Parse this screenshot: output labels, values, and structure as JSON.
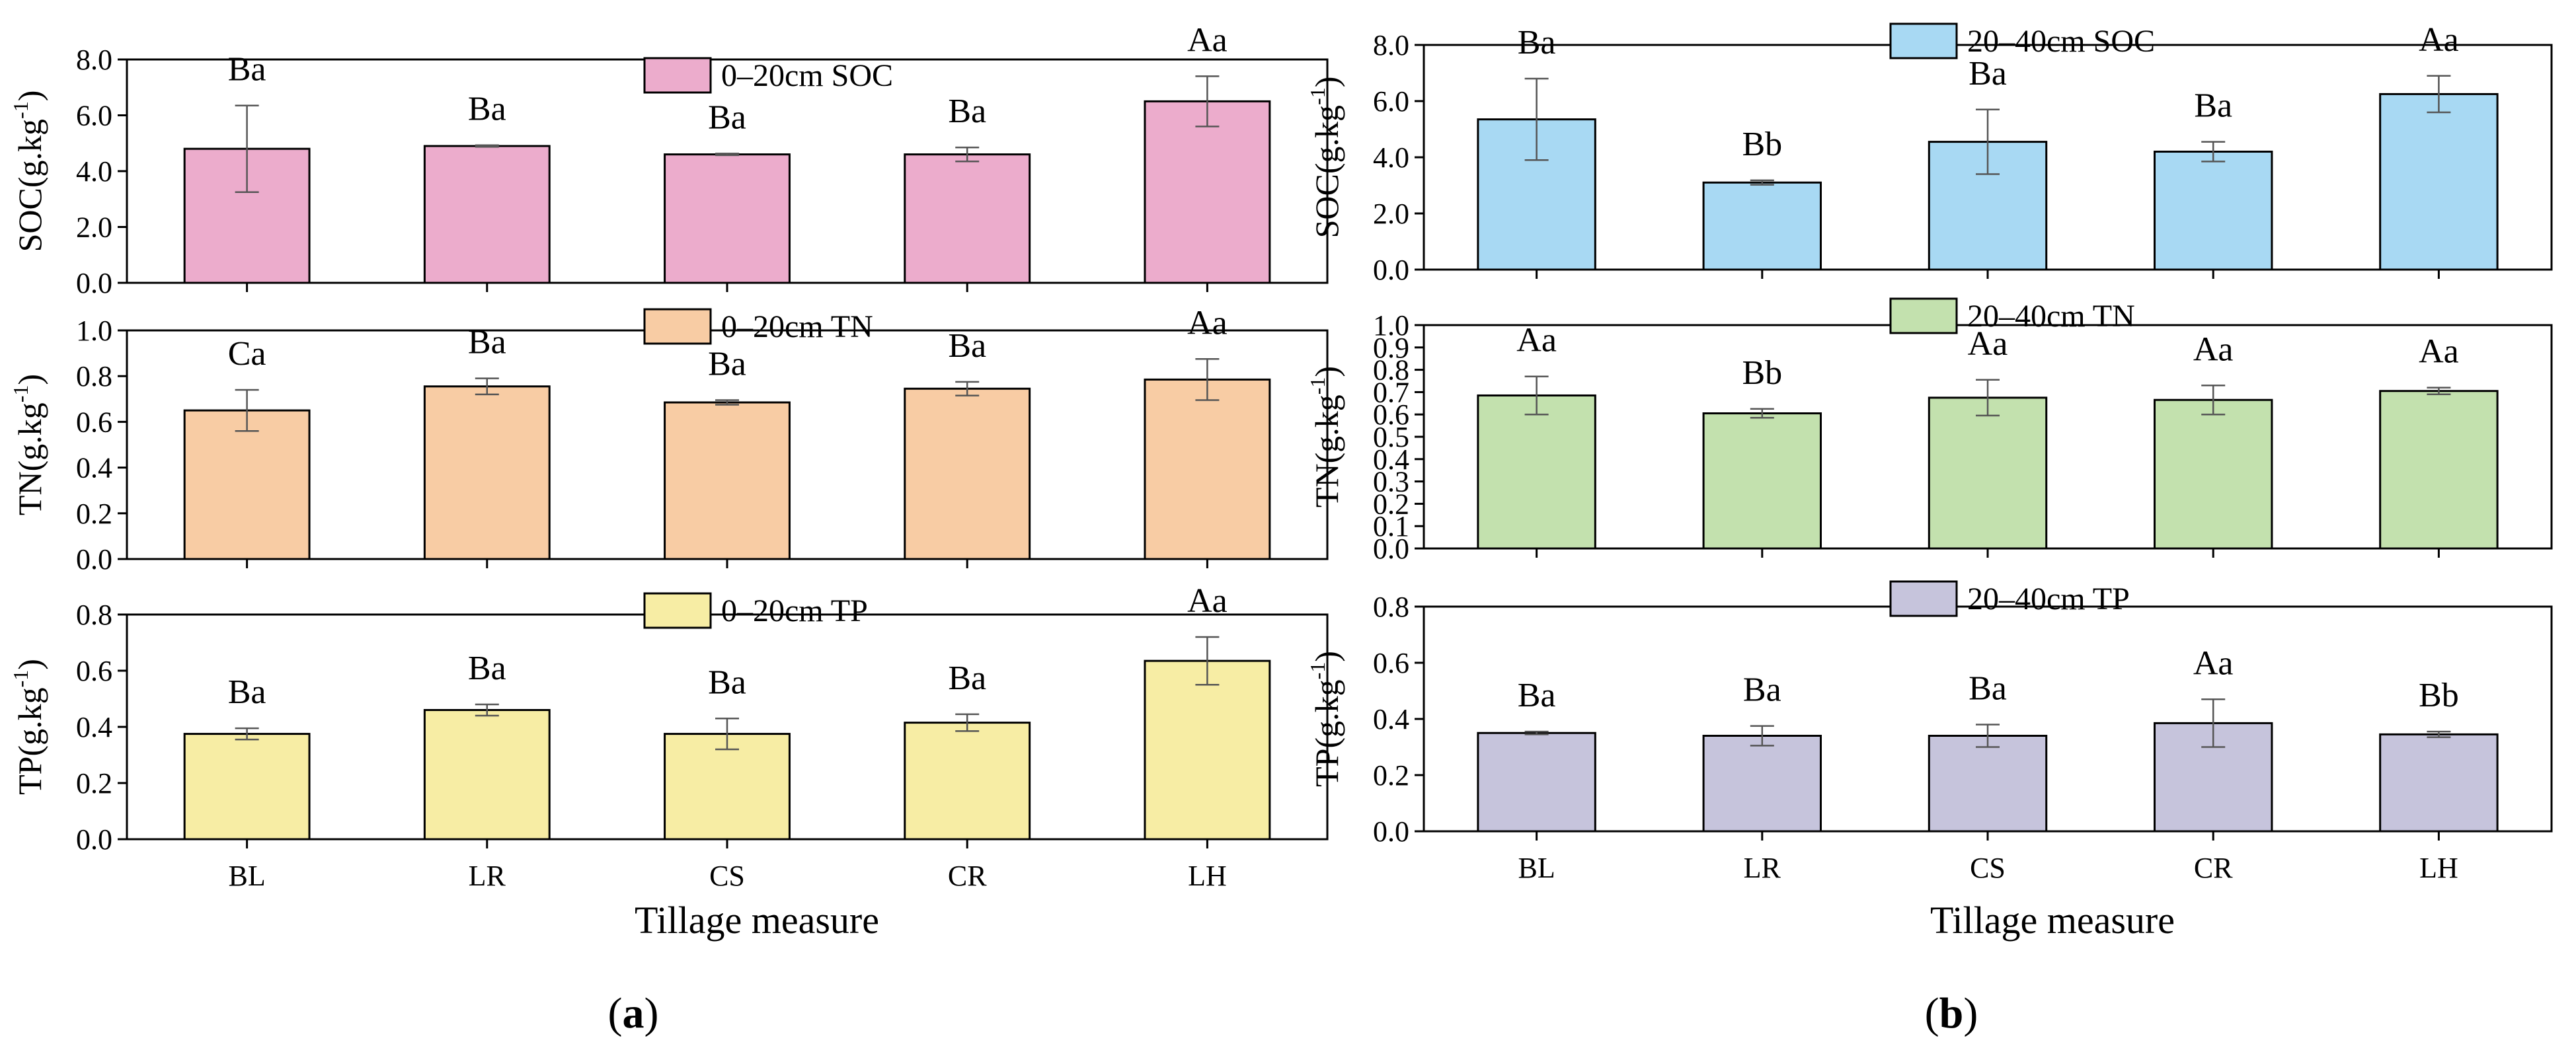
{
  "panels": [
    {
      "id": "a",
      "label_parts": [
        "(",
        "a",
        ")"
      ],
      "xlabel": "Tillage measure",
      "categories": [
        "BL",
        "LR",
        "CS",
        "CR",
        "LH"
      ]
    },
    {
      "id": "b",
      "label_parts": [
        "(",
        "b",
        ")"
      ],
      "xlabel": "Tillage measure",
      "categories": [
        "BL",
        "LR",
        "CS",
        "CR",
        "LH"
      ]
    }
  ],
  "chart_data": [
    {
      "type": "bar",
      "panel": "a",
      "title": "0–20cm SOC",
      "legend": "0–20cm SOC",
      "ylabel": "SOC(g.kg",
      "ylabel_sup": "-1",
      "ylabel_end": ")",
      "categories": [
        "BL",
        "LR",
        "CS",
        "CR",
        "LH"
      ],
      "values": [
        4.8,
        4.9,
        4.6,
        4.6,
        6.5
      ],
      "errors": [
        1.55,
        0.03,
        0.03,
        0.25,
        0.9
      ],
      "significance": [
        "Ba",
        "Ba",
        "Ba",
        "Ba",
        "Aa"
      ],
      "yticks": [
        "0.0",
        "2.0",
        "4.0",
        "6.0",
        "8.0"
      ],
      "ylim": [
        0,
        8
      ],
      "color": "#ecaccc"
    },
    {
      "type": "bar",
      "panel": "a",
      "title": "0–20cm TN",
      "legend": "0–20cm TN",
      "ylabel": "TN(g.kg",
      "ylabel_sup": "-1",
      "ylabel_end": ")",
      "categories": [
        "BL",
        "LR",
        "CS",
        "CR",
        "LH"
      ],
      "values": [
        0.65,
        0.755,
        0.685,
        0.745,
        0.785
      ],
      "errors": [
        0.09,
        0.035,
        0.01,
        0.03,
        0.09
      ],
      "significance": [
        "Ca",
        "Ba",
        "Ba",
        "Ba",
        "Aa"
      ],
      "yticks": [
        "0.0",
        "0.2",
        "0.4",
        "0.6",
        "0.8",
        "1.0"
      ],
      "ylim": [
        0,
        1
      ],
      "color": "#f8cca4"
    },
    {
      "type": "bar",
      "panel": "a",
      "title": "0–20cm TP",
      "legend": "0–20cm TP",
      "ylabel": "TP(g.kg",
      "ylabel_sup": "-1",
      "ylabel_end": ")",
      "categories": [
        "BL",
        "LR",
        "CS",
        "CR",
        "LH"
      ],
      "values": [
        0.375,
        0.46,
        0.375,
        0.415,
        0.635
      ],
      "errors": [
        0.02,
        0.02,
        0.055,
        0.03,
        0.085
      ],
      "significance": [
        "Ba",
        "Ba",
        "Ba",
        "Ba",
        "Aa"
      ],
      "yticks": [
        "0.0",
        "0.2",
        "0.4",
        "0.6",
        "0.8"
      ],
      "ylim": [
        0,
        0.8
      ],
      "color": "#f7eda4"
    },
    {
      "type": "bar",
      "panel": "b",
      "title": "20–40cm SOC",
      "legend": "20–40cm SOC",
      "ylabel": "SOC(g.kg",
      "ylabel_sup": "-1",
      "ylabel_end": ")",
      "categories": [
        "BL",
        "LR",
        "CS",
        "CR",
        "LH"
      ],
      "values": [
        5.35,
        3.1,
        4.55,
        4.2,
        6.25
      ],
      "errors": [
        1.45,
        0.08,
        1.15,
        0.35,
        0.65
      ],
      "significance": [
        "Ba",
        "Bb",
        "Ba",
        "Ba",
        "Aa"
      ],
      "yticks": [
        "0.0",
        "2.0",
        "4.0",
        "6.0",
        "8.0"
      ],
      "ylim": [
        0,
        8
      ],
      "color": "#a8d9f3"
    },
    {
      "type": "bar",
      "panel": "b",
      "title": "20–40cm TN",
      "legend": "20–40cm TN",
      "ylabel": "TN(g.kg",
      "ylabel_sup": "-1",
      "ylabel_end": ")",
      "categories": [
        "BL",
        "LR",
        "CS",
        "CR",
        "LH"
      ],
      "values": [
        0.685,
        0.605,
        0.675,
        0.665,
        0.705
      ],
      "errors": [
        0.085,
        0.02,
        0.08,
        0.065,
        0.015
      ],
      "significance": [
        "Aa",
        "Bb",
        "Aa",
        "Aa",
        "Aa"
      ],
      "yticks": [
        "0.0",
        "0.1",
        "0.2",
        "0.3",
        "0.4",
        "0.5",
        "0.6",
        "0.7",
        "0.8",
        "0.9",
        "1.0"
      ],
      "ylim": [
        0,
        1
      ],
      "color": "#c3e1ae"
    },
    {
      "type": "bar",
      "panel": "b",
      "title": "20–40cm TP",
      "legend": "20–40cm TP",
      "ylabel": "TP(g.kg",
      "ylabel_sup": "-1",
      "ylabel_end": ")",
      "categories": [
        "BL",
        "LR",
        "CS",
        "CR",
        "LH"
      ],
      "values": [
        0.35,
        0.34,
        0.34,
        0.385,
        0.345
      ],
      "errors": [
        0.005,
        0.035,
        0.04,
        0.085,
        0.01
      ],
      "significance": [
        "Ba",
        "Ba",
        "Ba",
        "Aa",
        "Bb"
      ],
      "yticks": [
        "0.0",
        "0.2",
        "0.4",
        "0.6",
        "0.8"
      ],
      "ylim": [
        0,
        0.8
      ],
      "color": "#c6c4dc"
    }
  ]
}
